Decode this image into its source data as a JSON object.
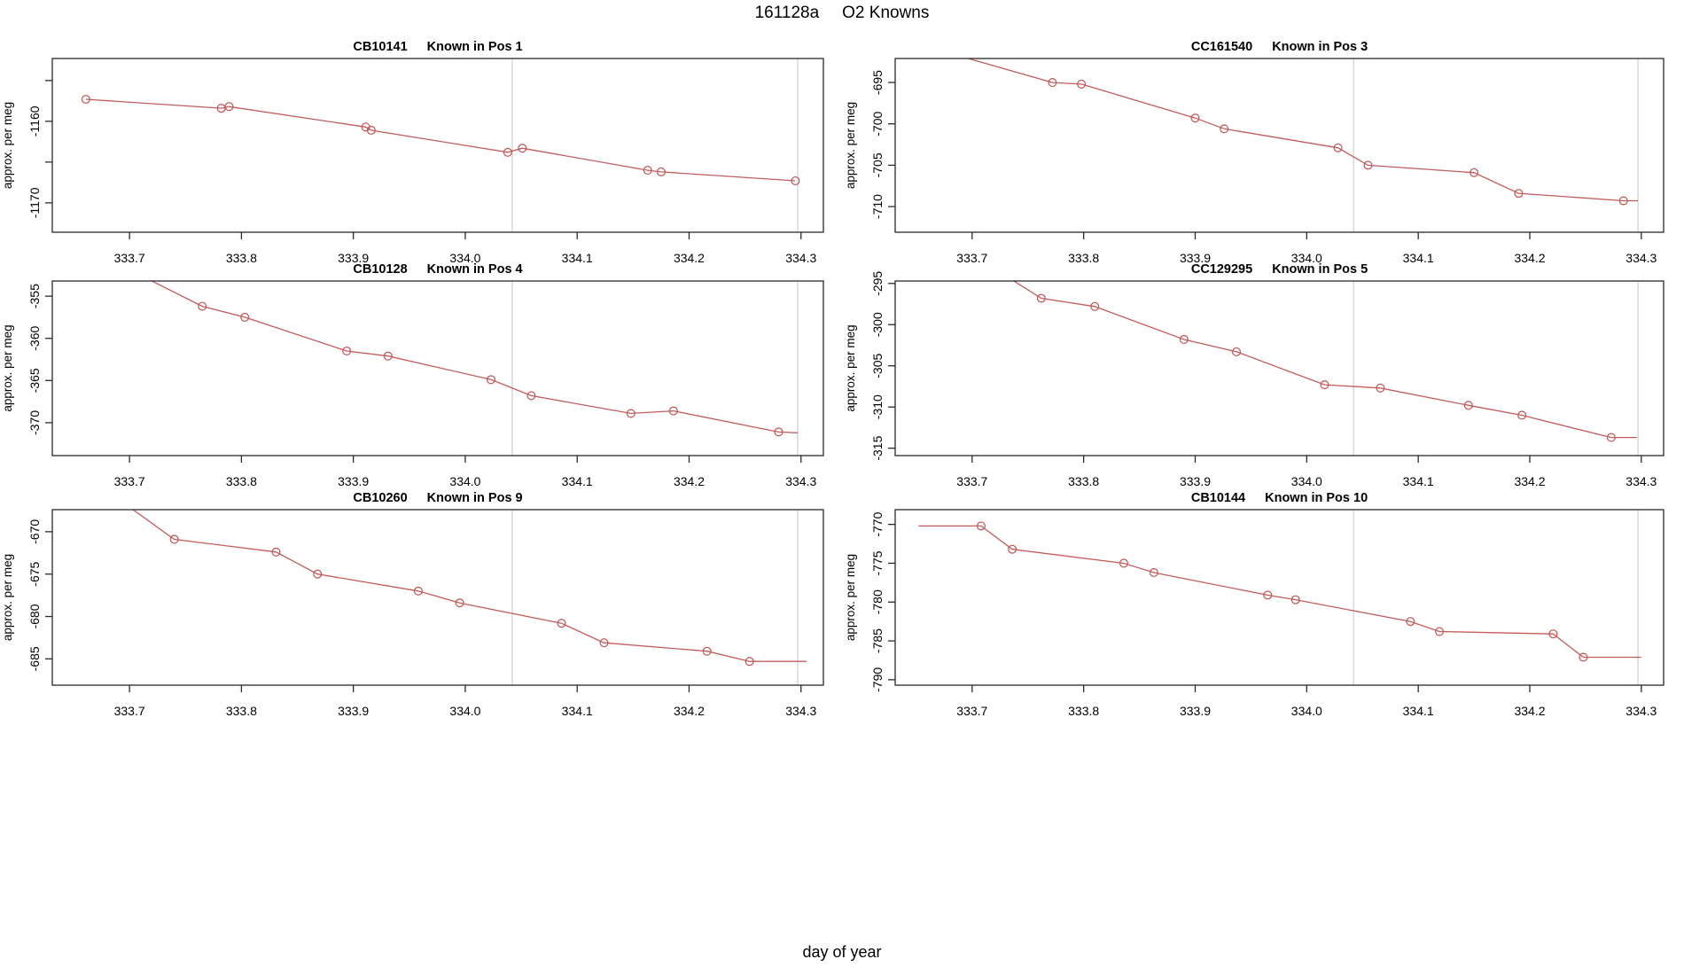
{
  "figure": {
    "title_left": "161128a",
    "title_right": "O2 Knowns",
    "xlabel": "day of year",
    "ylabel": "approx. per meg",
    "line_color": "#c35b5b",
    "vline_color": "#d2d2d2",
    "box_color": "#2a2a2a",
    "text_color": "#000000",
    "background": "#ffffff",
    "vlines": [
      334.042,
      334.297
    ],
    "xlim": [
      333.631,
      334.32
    ],
    "xticks": [
      333.7,
      333.8,
      333.9,
      334.0,
      334.1,
      334.2,
      334.3
    ],
    "xtick_labels": [
      "333.7",
      "333.8",
      "333.9",
      "334.0",
      "334.1",
      "334.2",
      "334.3"
    ]
  },
  "chart_data": [
    {
      "type": "line",
      "sample_id": "CB10141",
      "position_label": "Known in Pos 1",
      "ylabel": "approx. per meg",
      "ylim": [
        -1173.6,
        -1152.3
      ],
      "yticks": [
        {
          "value": -1155,
          "label": ""
        },
        {
          "value": -1160,
          "label": "-1160"
        },
        {
          "value": -1165,
          "label": ""
        },
        {
          "value": -1170,
          "label": "-1170"
        }
      ],
      "points": [
        [
          333.661,
          -1157.3,
          1
        ],
        [
          333.782,
          -1158.4,
          1
        ],
        [
          333.789,
          -1158.2,
          1
        ],
        [
          333.911,
          -1160.7,
          1
        ],
        [
          333.916,
          -1161.1,
          1
        ],
        [
          334.038,
          -1163.8,
          1
        ],
        [
          334.051,
          -1163.3,
          1
        ],
        [
          334.163,
          -1166.0,
          1
        ],
        [
          334.175,
          -1166.2,
          1
        ],
        [
          334.295,
          -1167.3,
          1
        ]
      ]
    },
    {
      "type": "line",
      "sample_id": "CC161540",
      "position_label": "Known in Pos 3",
      "ylabel": "approx. per meg",
      "ylim": [
        -713.1,
        -692.1
      ],
      "yticks": [
        {
          "value": -695,
          "label": "-695"
        },
        {
          "value": -700,
          "label": "-700"
        },
        {
          "value": -705,
          "label": "-705"
        },
        {
          "value": -710,
          "label": "-710"
        }
      ],
      "points": [
        [
          333.655,
          -690.5,
          0
        ],
        [
          333.772,
          -695.0,
          1
        ],
        [
          333.798,
          -695.2,
          1
        ],
        [
          333.9,
          -699.3,
          1
        ],
        [
          333.926,
          -700.6,
          1
        ],
        [
          334.028,
          -702.9,
          1
        ],
        [
          334.055,
          -705.0,
          1
        ],
        [
          334.15,
          -705.9,
          1
        ],
        [
          334.19,
          -708.4,
          1
        ],
        [
          334.284,
          -709.3,
          1
        ],
        [
          334.297,
          -709.3,
          0
        ]
      ]
    },
    {
      "type": "line",
      "sample_id": "CB10128",
      "position_label": "Known in Pos 4",
      "ylabel": "approx. per meg",
      "ylim": [
        -373.9,
        -353.2
      ],
      "yticks": [
        {
          "value": -355,
          "label": "-355"
        },
        {
          "value": -360,
          "label": "-360"
        },
        {
          "value": -365,
          "label": "-365"
        },
        {
          "value": -370,
          "label": "-370"
        }
      ],
      "points": [
        [
          333.66,
          -349.2,
          0
        ],
        [
          333.765,
          -356.2,
          1
        ],
        [
          333.803,
          -357.5,
          1
        ],
        [
          333.894,
          -361.5,
          1
        ],
        [
          333.931,
          -362.1,
          1
        ],
        [
          334.023,
          -364.9,
          1
        ],
        [
          334.059,
          -366.8,
          1
        ],
        [
          334.148,
          -368.9,
          1
        ],
        [
          334.186,
          -368.6,
          1
        ],
        [
          334.28,
          -371.1,
          1
        ],
        [
          334.297,
          -371.2,
          0
        ]
      ]
    },
    {
      "type": "line",
      "sample_id": "CC129295",
      "position_label": "Known in Pos 5",
      "ylabel": "approx. per meg",
      "ylim": [
        -315.9,
        -294.7
      ],
      "yticks": [
        {
          "value": -295,
          "label": "-295"
        },
        {
          "value": -300,
          "label": "-300"
        },
        {
          "value": -305,
          "label": "-305"
        },
        {
          "value": -310,
          "label": "-310"
        },
        {
          "value": -315,
          "label": "-315"
        }
      ],
      "points": [
        [
          333.7,
          -291.5,
          0
        ],
        [
          333.762,
          -296.8,
          1
        ],
        [
          333.81,
          -297.8,
          1
        ],
        [
          333.89,
          -301.8,
          1
        ],
        [
          333.937,
          -303.3,
          1
        ],
        [
          334.016,
          -307.3,
          1
        ],
        [
          334.066,
          -307.7,
          1
        ],
        [
          334.145,
          -309.8,
          1
        ],
        [
          334.193,
          -311.0,
          1
        ],
        [
          334.273,
          -313.7,
          1
        ],
        [
          334.296,
          -313.7,
          0
        ]
      ]
    },
    {
      "type": "line",
      "sample_id": "CB10260",
      "position_label": "Known in Pos 9",
      "ylabel": "approx. per meg",
      "ylim": [
        -688.1,
        -667.4
      ],
      "yticks": [
        {
          "value": -670,
          "label": "-670"
        },
        {
          "value": -675,
          "label": "-675"
        },
        {
          "value": -680,
          "label": "-680"
        },
        {
          "value": -685,
          "label": "-685"
        }
      ],
      "points": [
        [
          333.68,
          -665.2,
          0
        ],
        [
          333.74,
          -670.9,
          1
        ],
        [
          333.831,
          -672.4,
          1
        ],
        [
          333.868,
          -675.0,
          1
        ],
        [
          333.958,
          -677.0,
          1
        ],
        [
          333.995,
          -678.4,
          1
        ],
        [
          334.086,
          -680.8,
          1
        ],
        [
          334.124,
          -683.1,
          1
        ],
        [
          334.216,
          -684.1,
          1
        ],
        [
          334.254,
          -685.3,
          1
        ],
        [
          334.305,
          -685.3,
          0
        ]
      ]
    },
    {
      "type": "line",
      "sample_id": "CB10144",
      "position_label": "Known in Pos 10",
      "ylabel": "approx. per meg",
      "ylim": [
        -790.7,
        -768.1
      ],
      "yticks": [
        {
          "value": -770,
          "label": "-770"
        },
        {
          "value": -775,
          "label": "-775"
        },
        {
          "value": -780,
          "label": "-780"
        },
        {
          "value": -785,
          "label": "-785"
        },
        {
          "value": -790,
          "label": "-790"
        }
      ],
      "points": [
        [
          333.652,
          -770.2,
          0
        ],
        [
          333.708,
          -770.2,
          1
        ],
        [
          333.736,
          -773.2,
          1
        ],
        [
          333.836,
          -775.0,
          1
        ],
        [
          333.863,
          -776.2,
          1
        ],
        [
          333.965,
          -779.1,
          1
        ],
        [
          333.99,
          -779.7,
          1
        ],
        [
          334.093,
          -782.5,
          1
        ],
        [
          334.119,
          -783.8,
          1
        ],
        [
          334.221,
          -784.1,
          1
        ],
        [
          334.248,
          -787.1,
          1
        ],
        [
          334.3,
          -787.1,
          0
        ]
      ]
    }
  ]
}
